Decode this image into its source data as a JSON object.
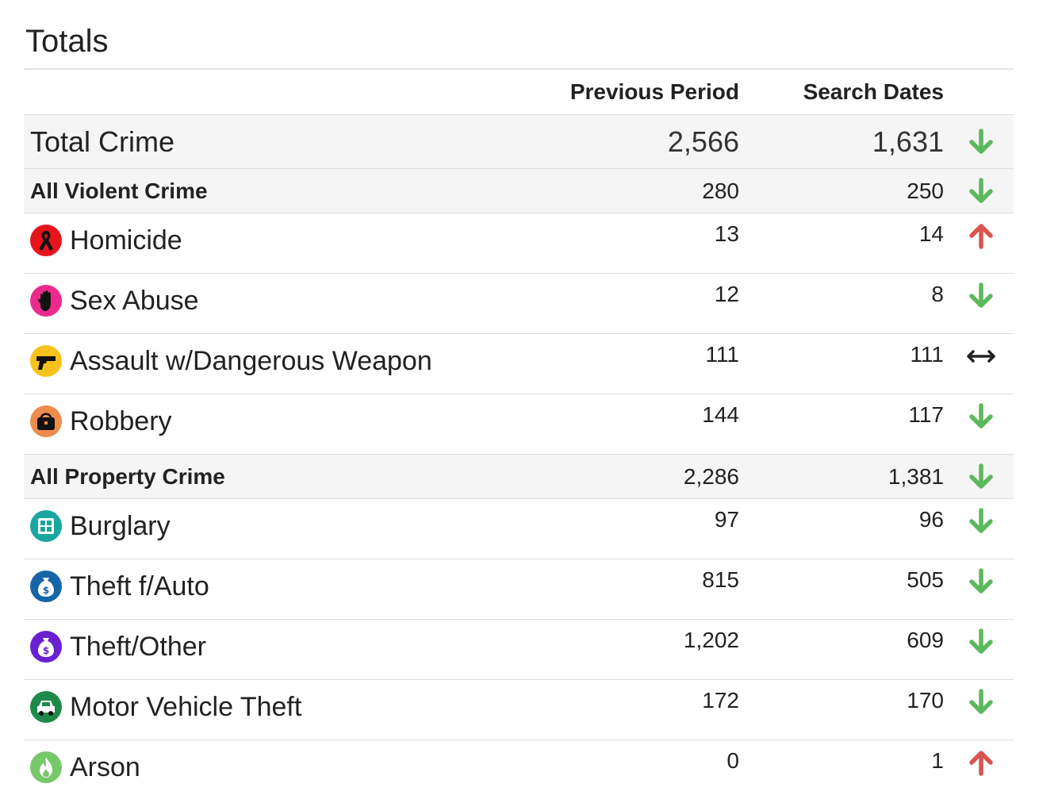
{
  "title": "Totals",
  "columns": {
    "previous": "Previous Period",
    "current": "Search Dates"
  },
  "colors": {
    "down": "#5cb85c",
    "up": "#d9534f",
    "same": "#222222"
  },
  "total": {
    "name": "Total Crime",
    "previous": "2,566",
    "current": "1,631",
    "trend": "down"
  },
  "violent": {
    "name": "All Violent Crime",
    "previous": "280",
    "current": "250",
    "trend": "down",
    "items": [
      {
        "name": "Homicide",
        "icon": "ribbon-icon",
        "previous": "13",
        "current": "14",
        "trend": "up"
      },
      {
        "name": "Sex Abuse",
        "icon": "hand-icon",
        "previous": "12",
        "current": "8",
        "trend": "down"
      },
      {
        "name": "Assault w/Dangerous Weapon",
        "icon": "gun-icon",
        "previous": "111",
        "current": "111",
        "trend": "same"
      },
      {
        "name": "Robbery",
        "icon": "handbag-icon",
        "previous": "144",
        "current": "117",
        "trend": "down"
      }
    ]
  },
  "property": {
    "name": "All Property Crime",
    "previous": "2,286",
    "current": "1,381",
    "trend": "down",
    "items": [
      {
        "name": "Burglary",
        "icon": "house-icon",
        "previous": "97",
        "current": "96",
        "trend": "down"
      },
      {
        "name": "Theft f/Auto",
        "icon": "money-bag-icon",
        "previous": "815",
        "current": "505",
        "trend": "down"
      },
      {
        "name": "Theft/Other",
        "icon": "money-bag-icon",
        "previous": "1,202",
        "current": "609",
        "trend": "down"
      },
      {
        "name": "Motor Vehicle Theft",
        "icon": "car-icon",
        "previous": "172",
        "current": "170",
        "trend": "down"
      },
      {
        "name": "Arson",
        "icon": "flame-icon",
        "previous": "0",
        "current": "1",
        "trend": "up"
      }
    ]
  }
}
